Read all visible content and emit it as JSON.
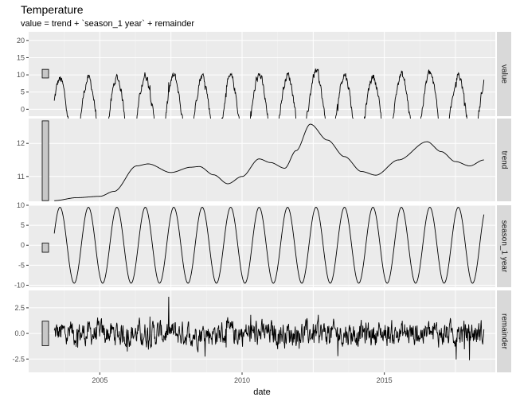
{
  "chart_data": {
    "type": "line",
    "title": "Temperature",
    "subtitle": "value = trend + `season_1 year` + remainder",
    "xlabel": "date",
    "x_ticks": [
      "2005",
      "2010",
      "2015"
    ],
    "x_range": [
      2002.5,
      2018.9
    ],
    "data_start": 2003.4,
    "data_end": 2018.5,
    "grid": true,
    "panels": [
      {
        "name": "value",
        "ylim": [
          -2,
          22.5
        ],
        "y_ticks": [
          0,
          5,
          10,
          15,
          20
        ],
        "scale_bar": [
          9.1,
          11.6
        ],
        "series_description": "trend + seasonal + remainder"
      },
      {
        "name": "trend",
        "ylim": [
          10.25,
          12.75
        ],
        "y_ticks": [
          11,
          12
        ],
        "scale_bar": [
          10.27,
          12.68
        ],
        "knots": [
          [
            2003.4,
            10.27
          ],
          [
            2004.2,
            10.36
          ],
          [
            2005.0,
            10.4
          ],
          [
            2005.5,
            10.55
          ],
          [
            2006.3,
            11.32
          ],
          [
            2006.7,
            11.38
          ],
          [
            2007.5,
            11.12
          ],
          [
            2008.2,
            11.28
          ],
          [
            2008.5,
            11.3
          ],
          [
            2009.0,
            11.05
          ],
          [
            2009.5,
            10.78
          ],
          [
            2010.0,
            11.0
          ],
          [
            2010.6,
            11.53
          ],
          [
            2011.0,
            11.42
          ],
          [
            2011.5,
            11.25
          ],
          [
            2011.9,
            11.78
          ],
          [
            2012.4,
            12.58
          ],
          [
            2013.0,
            12.1
          ],
          [
            2013.6,
            11.6
          ],
          [
            2014.2,
            11.15
          ],
          [
            2014.7,
            11.04
          ],
          [
            2015.5,
            11.5
          ],
          [
            2016.5,
            12.05
          ],
          [
            2017.0,
            11.75
          ],
          [
            2017.5,
            11.45
          ],
          [
            2018.0,
            11.32
          ],
          [
            2018.5,
            11.5
          ]
        ]
      },
      {
        "name": "season_1 year",
        "ylim": [
          -10.5,
          10
        ],
        "y_ticks": [
          -10,
          -5,
          0,
          5,
          10
        ],
        "scale_bar": [
          -1.75,
          0.55
        ],
        "amplitude": 9.5,
        "period_years": 1,
        "peak_phase": 0.6
      },
      {
        "name": "remainder",
        "ylim": [
          -3.8,
          4.2
        ],
        "y_ticks": [
          -2.5,
          0.0,
          2.5
        ],
        "y_tick_labels": [
          "-2.5",
          "0.0",
          "2.5"
        ],
        "scale_bar": [
          -1.2,
          1.2
        ],
        "approx_range": [
          -3.8,
          3.9
        ]
      }
    ]
  }
}
